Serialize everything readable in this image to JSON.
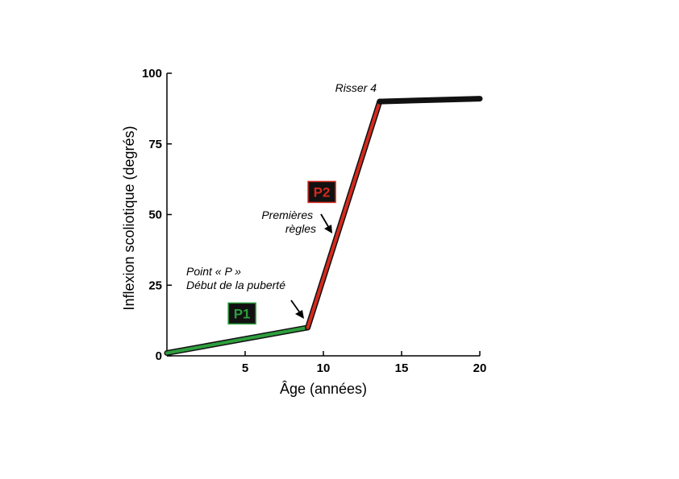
{
  "chart_data": {
    "type": "line",
    "xlabel": "Âge (années)",
    "ylabel": "Inflexion scoliotique (degrés)",
    "xlim": [
      0,
      20
    ],
    "ylim": [
      0,
      100
    ],
    "x_ticks": [
      5,
      10,
      15,
      20
    ],
    "y_ticks": [
      0,
      25,
      50,
      75,
      100
    ],
    "grid": false,
    "series": [
      {
        "segment": "P1",
        "color": "#2e9e3e",
        "x": [
          0,
          9
        ],
        "y": [
          1,
          10
        ]
      },
      {
        "segment": "P2",
        "color": "#d42a1e",
        "x": [
          9,
          13.6
        ],
        "y": [
          10,
          90
        ]
      },
      {
        "segment": "plateau",
        "color": "#111111",
        "x": [
          13.6,
          20
        ],
        "y": [
          90,
          91
        ]
      }
    ],
    "phases": [
      {
        "label": "P1",
        "text_color": "#2e9e3e",
        "border_color": "#2e9e3e",
        "background": "#111111",
        "x": 4.8,
        "y": 15
      },
      {
        "label": "P2",
        "text_color": "#d42a1e",
        "border_color": "#d42a1e",
        "background": "#111111",
        "x": 9.9,
        "y": 58
      }
    ],
    "annotations": [
      {
        "lines": [
          "Point « P »",
          "Début de la puberté"
        ],
        "x": 9,
        "y": 10
      },
      {
        "lines": [
          "Premières",
          "règles"
        ],
        "x": 10.8,
        "y": 43
      },
      {
        "lines": [
          "Risser 4"
        ],
        "x": 13.6,
        "y": 90
      }
    ]
  }
}
